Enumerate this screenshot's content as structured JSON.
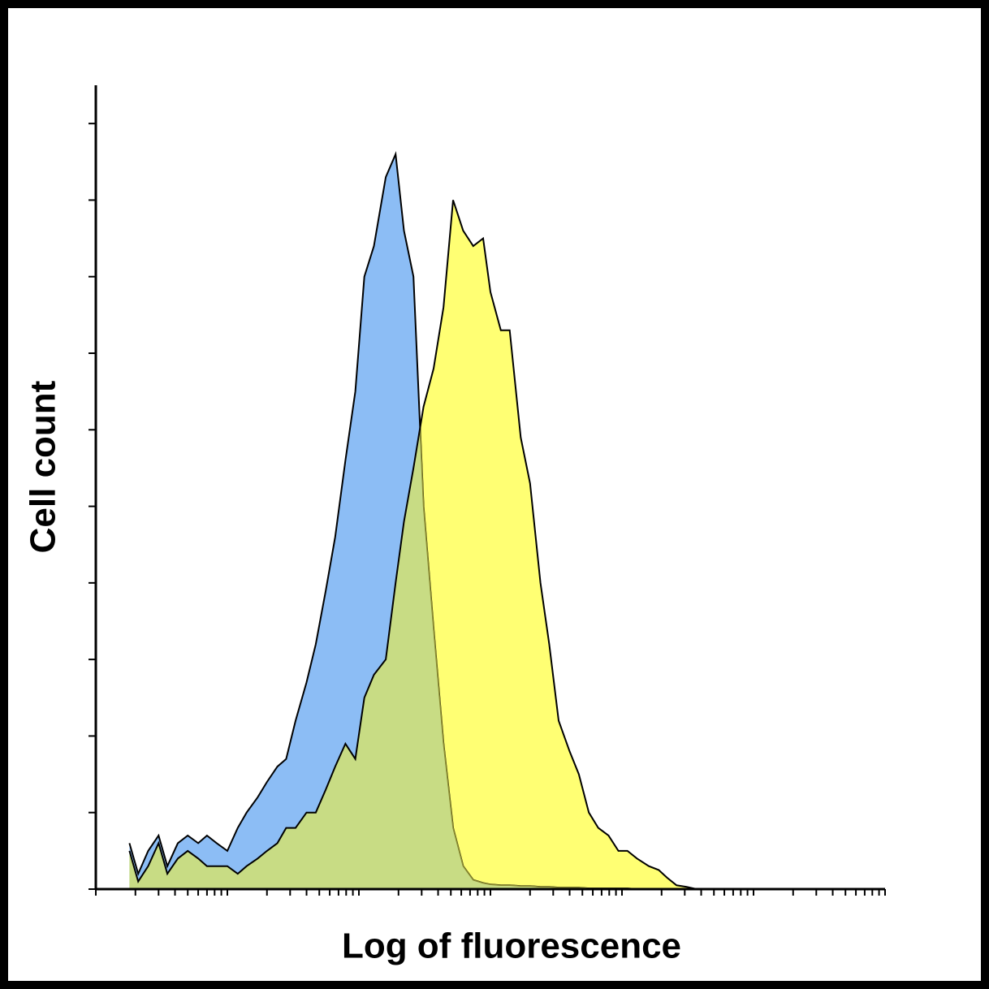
{
  "chart_data": {
    "type": "histogram-overlay",
    "xlabel": "Log of fluorescence",
    "ylabel": "Cell count",
    "xscale": "log",
    "xlim": [
      1,
      1000000
    ],
    "ylim": [
      0,
      10.5
    ],
    "xticks": [
      1,
      2,
      3,
      4,
      5,
      6,
      7,
      8,
      9,
      10,
      20,
      30,
      40,
      50,
      60,
      70,
      80,
      90,
      100,
      200,
      300,
      400,
      500,
      600,
      700,
      800,
      900,
      1000,
      2000,
      3000,
      4000,
      5000,
      6000,
      7000,
      8000,
      9000,
      10000,
      20000,
      30000,
      40000,
      50000,
      60000,
      70000,
      80000,
      90000,
      100000,
      200000,
      300000,
      400000,
      500000,
      600000,
      700000,
      800000,
      900000,
      1000000
    ],
    "yticks": [
      0,
      1,
      2,
      3,
      4,
      5,
      6,
      7,
      8,
      9,
      10
    ],
    "x": [
      1.8,
      2.1,
      2.5,
      3,
      3.5,
      4.2,
      5,
      6,
      7,
      8.3,
      10,
      12,
      14,
      17,
      20,
      24,
      28,
      33,
      40,
      47,
      56,
      66,
      79,
      94,
      110,
      130,
      160,
      190,
      220,
      260,
      310,
      370,
      440,
      520,
      620,
      740,
      880,
      1000,
      1200,
      1400,
      1700,
      2000,
      2400,
      2800,
      3300,
      4000,
      4700,
      5600,
      6600,
      7900,
      9400,
      11000,
      13000,
      16000,
      19000,
      22000,
      26000,
      31000,
      37000
    ],
    "series": [
      {
        "color": "#8cbdf5",
        "values": [
          0.6,
          0.2,
          0.5,
          0.7,
          0.3,
          0.6,
          0.7,
          0.6,
          0.7,
          0.6,
          0.5,
          0.8,
          1.0,
          1.2,
          1.4,
          1.6,
          1.7,
          2.2,
          2.7,
          3.2,
          3.9,
          4.6,
          5.6,
          6.5,
          8.0,
          8.4,
          9.3,
          9.6,
          8.6,
          8.0,
          5.0,
          3.4,
          1.9,
          0.8,
          0.3,
          0.12,
          0.08,
          0.06,
          0.05,
          0.05,
          0.04,
          0.04,
          0.03,
          0.03,
          0.02,
          0.02,
          0.02,
          0.01,
          0.01,
          0.01,
          0.01,
          0.01,
          0,
          0,
          0,
          0,
          0,
          0,
          0
        ]
      },
      {
        "color": "#ffff73",
        "values": [
          0.5,
          0.1,
          0.3,
          0.6,
          0.2,
          0.4,
          0.5,
          0.4,
          0.3,
          0.3,
          0.3,
          0.2,
          0.3,
          0.4,
          0.5,
          0.6,
          0.8,
          0.8,
          1.0,
          1.0,
          1.3,
          1.6,
          1.9,
          1.7,
          2.5,
          2.8,
          3.0,
          4.0,
          4.8,
          5.5,
          6.3,
          6.8,
          7.6,
          9.0,
          8.6,
          8.4,
          8.5,
          7.8,
          7.3,
          7.3,
          5.9,
          5.3,
          4.0,
          3.2,
          2.2,
          1.8,
          1.5,
          1.0,
          0.8,
          0.7,
          0.5,
          0.5,
          0.4,
          0.3,
          0.25,
          0.15,
          0.05,
          0.03,
          0
        ]
      }
    ]
  }
}
